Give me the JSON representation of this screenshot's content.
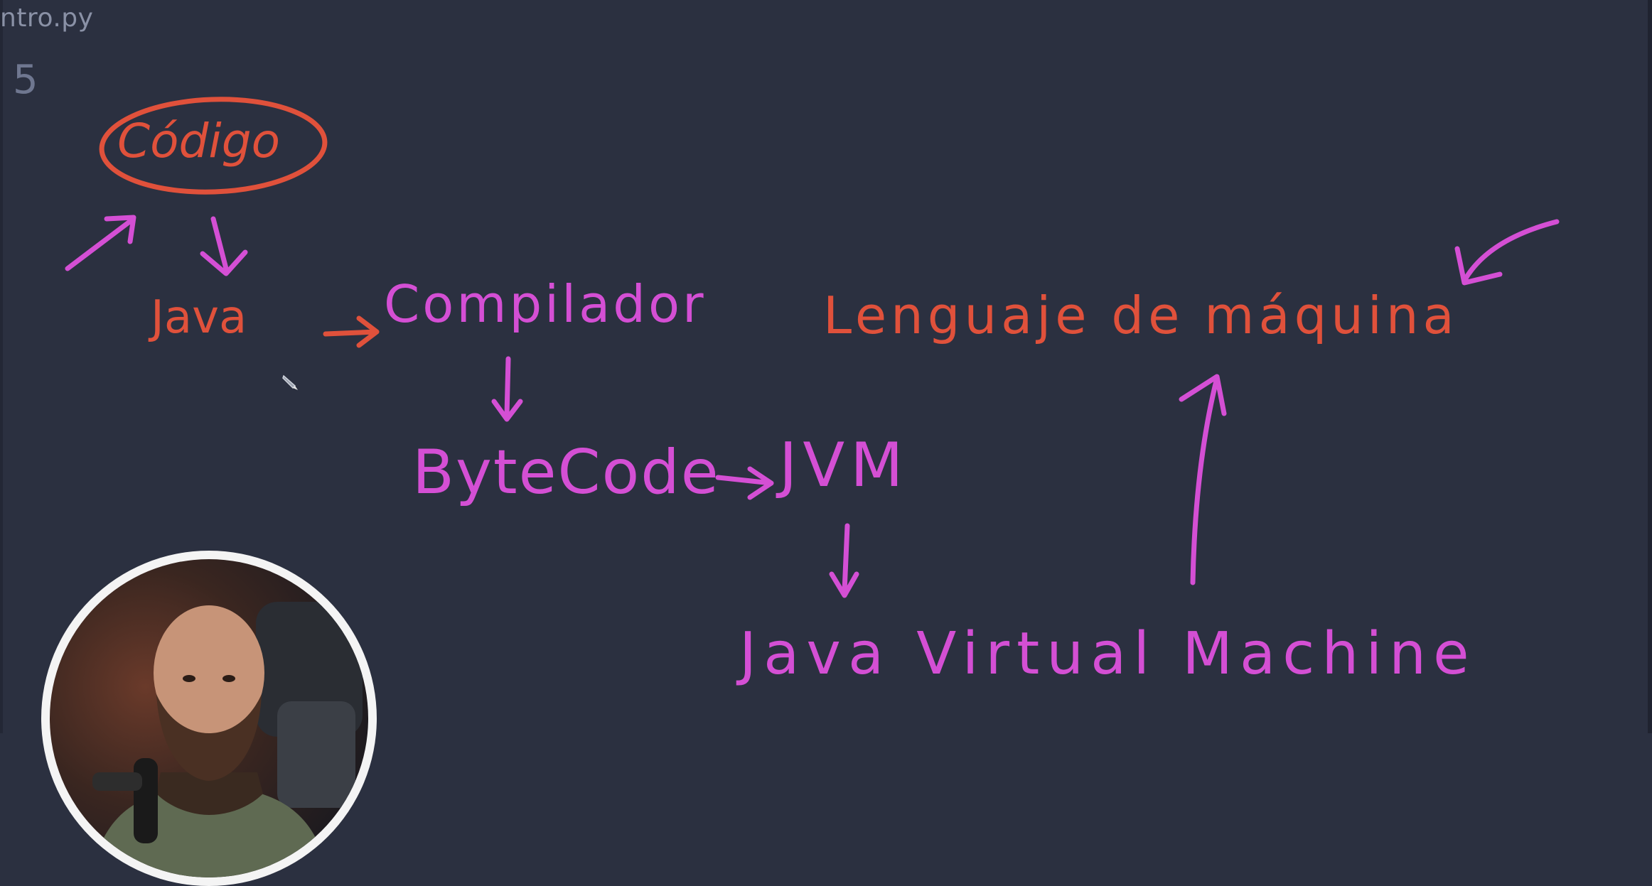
{
  "editor": {
    "tab_title": "ntro.py",
    "line_number": "5"
  },
  "drawing": {
    "codigo": "Código",
    "java": "Java",
    "compilador": "Compilador",
    "lenguaje_maquina": "Lenguaje de máquina",
    "bytecode": "ByteCode",
    "jvm": "JVM",
    "jvm_full": "Java Virtual Machine"
  },
  "colors": {
    "background": "#2b3040",
    "ink_red": "#e0513b",
    "ink_magenta": "#d44fd4"
  },
  "icons": {
    "cursor": "pencil-cursor-icon"
  }
}
